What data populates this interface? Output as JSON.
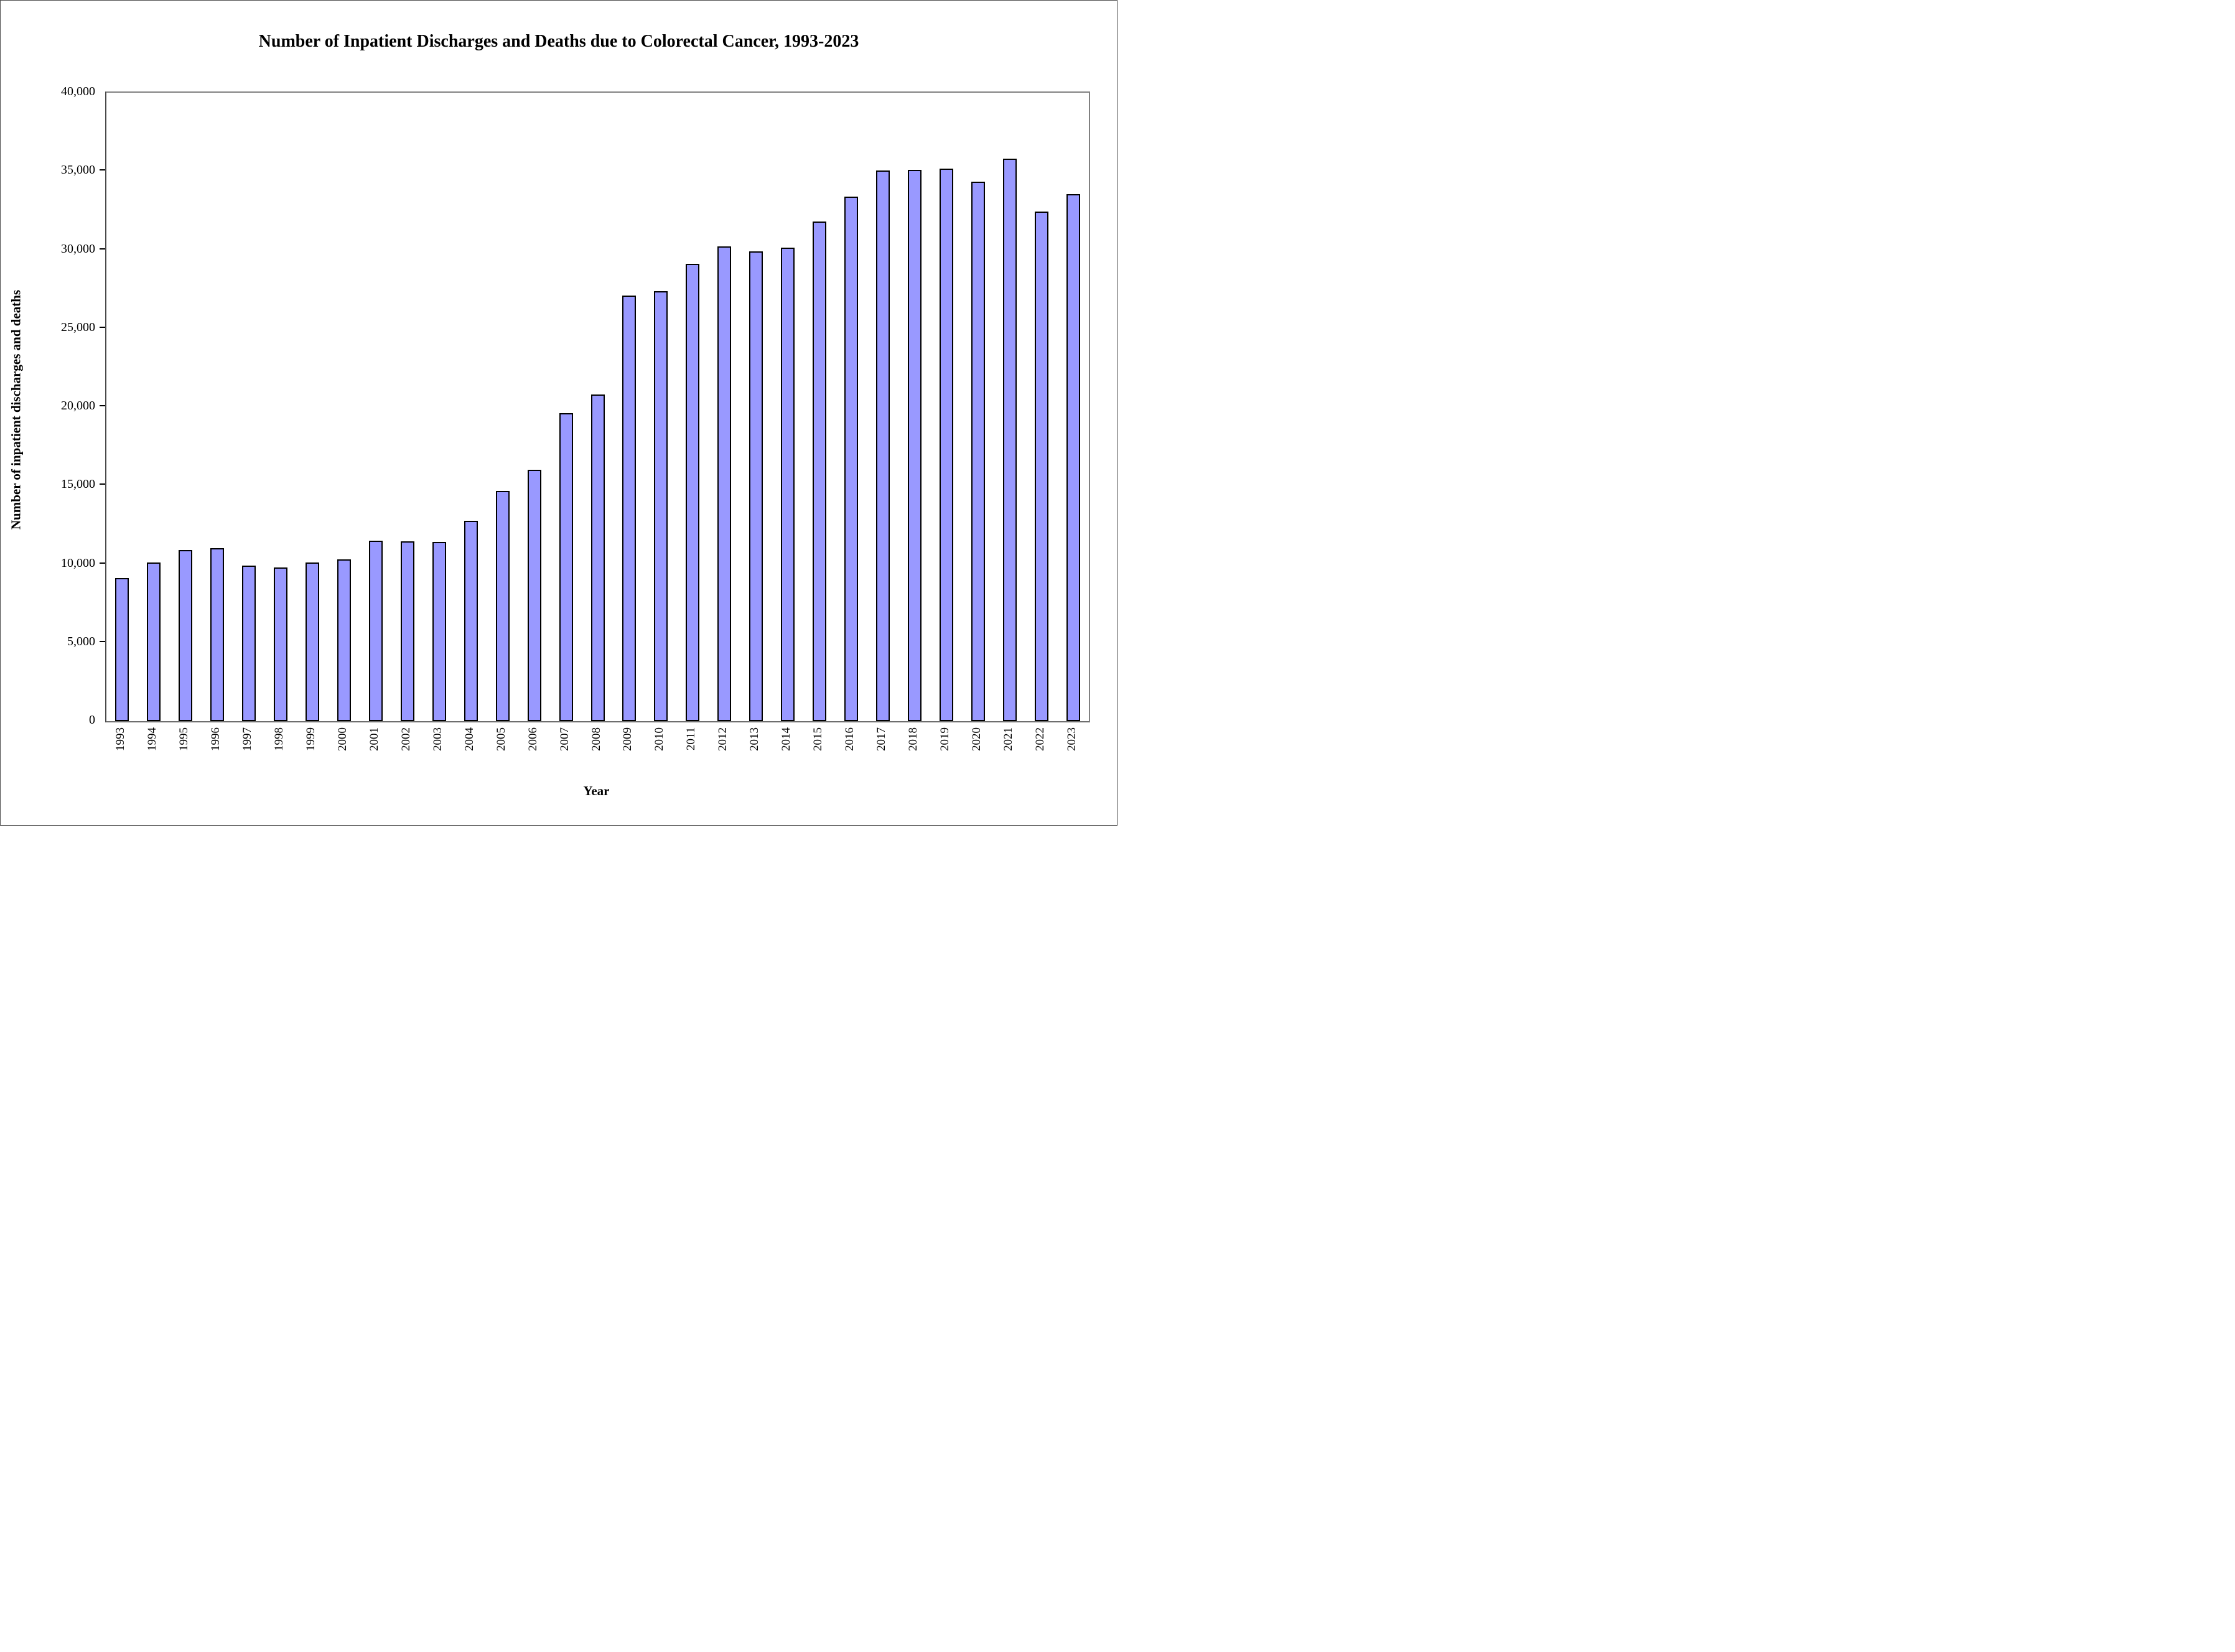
{
  "title": "Number of Inpatient Discharges and Deaths due to Colorectal Cancer, 1993-2023",
  "x_axis": {
    "label": "Year"
  },
  "y_axis": {
    "label": "Number of inpatient discharges and deaths",
    "tick_labels": [
      "0",
      "5,000",
      "10,000",
      "15,000",
      "20,000",
      "25,000",
      "30,000",
      "35,000",
      "40,000"
    ]
  },
  "chart_data": {
    "type": "bar",
    "title": "Number of Inpatient Discharges and Deaths due to Colorectal Cancer, 1993-2023",
    "xlabel": "Year",
    "ylabel": "Number of inpatient discharges and deaths",
    "categories": [
      "1993",
      "1994",
      "1995",
      "1996",
      "1997",
      "1998",
      "1999",
      "2000",
      "2001",
      "2002",
      "2003",
      "2004",
      "2005",
      "2006",
      "2007",
      "2008",
      "2009",
      "2010",
      "2011",
      "2012",
      "2013",
      "2014",
      "2015",
      "2016",
      "2017",
      "2018",
      "2019",
      "2020",
      "2021",
      "2022",
      "2023"
    ],
    "values": [
      9100,
      10100,
      10900,
      11000,
      9900,
      9800,
      10100,
      10300,
      11500,
      11450,
      11400,
      12750,
      14650,
      16000,
      19600,
      20800,
      27100,
      27350,
      29100,
      30200,
      29900,
      30150,
      31800,
      33400,
      35050,
      35100,
      35150,
      34350,
      35800,
      32450,
      33550
    ],
    "ylim": [
      0,
      40000
    ],
    "ytick_step": 5000,
    "grid": false,
    "legend_position": "none",
    "bar_fill_color": "#9999FF",
    "bar_border_color": "#000000"
  }
}
